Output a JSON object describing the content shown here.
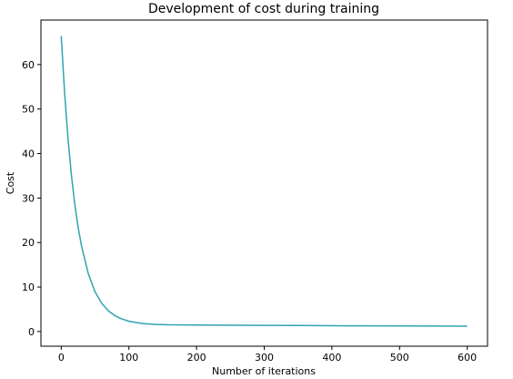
{
  "chart_data": {
    "type": "line",
    "title": "Development of cost during training",
    "xlabel": "Number of iterations",
    "ylabel": "Cost",
    "xlim": [
      -30,
      630
    ],
    "ylim": [
      -3.3,
      70
    ],
    "xticks": [
      0,
      100,
      200,
      300,
      400,
      500,
      600
    ],
    "yticks": [
      0,
      10,
      20,
      30,
      40,
      50,
      60
    ],
    "grid": false,
    "legend": "none",
    "series": [
      {
        "color": "#2fa4b0",
        "x": [
          0,
          5,
          10,
          15,
          20,
          25,
          30,
          40,
          50,
          60,
          70,
          80,
          90,
          100,
          120,
          140,
          160,
          200,
          250,
          300,
          350,
          400,
          450,
          500,
          550,
          600
        ],
        "y": [
          66.4,
          53.6,
          43.4,
          35.2,
          28.6,
          23.4,
          19.2,
          13.0,
          8.9,
          6.3,
          4.6,
          3.5,
          2.8,
          2.3,
          1.8,
          1.6,
          1.5,
          1.45,
          1.42,
          1.38,
          1.35,
          1.3,
          1.28,
          1.25,
          1.22,
          1.2
        ]
      }
    ]
  }
}
